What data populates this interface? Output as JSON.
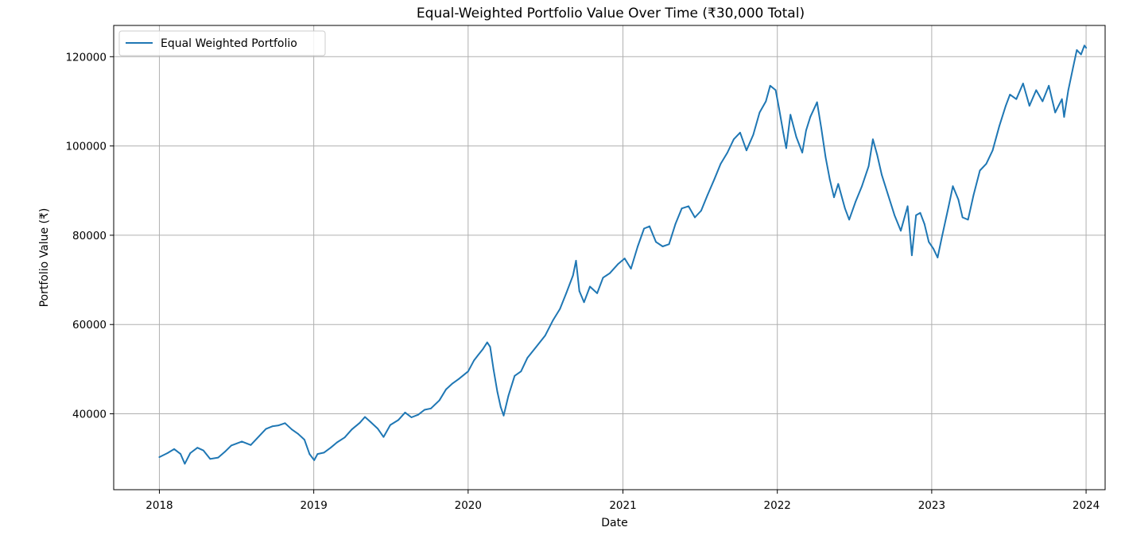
{
  "chart_data": {
    "type": "line",
    "title": "Equal-Weighted Portfolio Value Over Time (₹30,000 Total)",
    "xlabel": "Date",
    "ylabel": "Portfolio Value (₹)",
    "x_range": [
      "2017-09-15",
      "2024-02-15"
    ],
    "ylim": [
      23000,
      127000
    ],
    "x_ticks": [
      "2018",
      "2019",
      "2020",
      "2021",
      "2022",
      "2023",
      "2024"
    ],
    "y_ticks": [
      "40000",
      "60000",
      "80000",
      "100000",
      "120000"
    ],
    "grid": true,
    "legend_position": "top-left",
    "series": [
      {
        "name": "Equal Weighted Portfolio",
        "color": "#1f77b4",
        "points": [
          [
            "2018-01-01",
            30300
          ],
          [
            "2018-01-20",
            31200
          ],
          [
            "2018-02-05",
            32100
          ],
          [
            "2018-02-20",
            31000
          ],
          [
            "2018-03-02",
            28800
          ],
          [
            "2018-03-15",
            31200
          ],
          [
            "2018-04-01",
            32400
          ],
          [
            "2018-04-15",
            31800
          ],
          [
            "2018-05-01",
            29900
          ],
          [
            "2018-05-20",
            30200
          ],
          [
            "2018-06-05",
            31500
          ],
          [
            "2018-06-20",
            32900
          ],
          [
            "2018-07-15",
            33800
          ],
          [
            "2018-08-05",
            33000
          ],
          [
            "2018-08-25",
            35000
          ],
          [
            "2018-09-10",
            36600
          ],
          [
            "2018-09-25",
            37200
          ],
          [
            "2018-10-10",
            37400
          ],
          [
            "2018-10-25",
            37900
          ],
          [
            "2018-11-10",
            36500
          ],
          [
            "2018-11-25",
            35500
          ],
          [
            "2018-12-10",
            34200
          ],
          [
            "2018-12-22",
            31000
          ],
          [
            "2019-01-02",
            29600
          ],
          [
            "2019-01-10",
            31000
          ],
          [
            "2019-01-25",
            31300
          ],
          [
            "2019-02-10",
            32400
          ],
          [
            "2019-02-25",
            33600
          ],
          [
            "2019-03-15",
            34700
          ],
          [
            "2019-04-01",
            36500
          ],
          [
            "2019-04-20",
            38000
          ],
          [
            "2019-05-02",
            39300
          ],
          [
            "2019-05-15",
            38200
          ],
          [
            "2019-06-01",
            36700
          ],
          [
            "2019-06-15",
            34800
          ],
          [
            "2019-07-01",
            37500
          ],
          [
            "2019-07-20",
            38600
          ],
          [
            "2019-08-05",
            40300
          ],
          [
            "2019-08-20",
            39200
          ],
          [
            "2019-09-05",
            39800
          ],
          [
            "2019-09-20",
            40900
          ],
          [
            "2019-10-05",
            41200
          ],
          [
            "2019-10-25",
            43000
          ],
          [
            "2019-11-10",
            45500
          ],
          [
            "2019-11-25",
            46800
          ],
          [
            "2019-12-10",
            47800
          ],
          [
            "2020-01-01",
            49500
          ],
          [
            "2020-01-15",
            52000
          ],
          [
            "2020-01-25",
            53200
          ],
          [
            "2020-02-05",
            54500
          ],
          [
            "2020-02-15",
            56000
          ],
          [
            "2020-02-22",
            55000
          ],
          [
            "2020-03-01",
            50000
          ],
          [
            "2020-03-10",
            45000
          ],
          [
            "2020-03-18",
            41500
          ],
          [
            "2020-03-25",
            39600
          ],
          [
            "2020-04-05",
            44000
          ],
          [
            "2020-04-20",
            48500
          ],
          [
            "2020-05-05",
            49500
          ],
          [
            "2020-05-20",
            52500
          ],
          [
            "2020-06-10",
            55000
          ],
          [
            "2020-07-01",
            57500
          ],
          [
            "2020-07-20",
            61000
          ],
          [
            "2020-08-05",
            63500
          ],
          [
            "2020-08-20",
            67000
          ],
          [
            "2020-09-05",
            71000
          ],
          [
            "2020-09-12",
            74300
          ],
          [
            "2020-09-20",
            67500
          ],
          [
            "2020-10-01",
            65000
          ],
          [
            "2020-10-15",
            68500
          ],
          [
            "2020-11-01",
            67000
          ],
          [
            "2020-11-15",
            70500
          ],
          [
            "2020-12-01",
            71500
          ],
          [
            "2020-12-20",
            73500
          ],
          [
            "2021-01-05",
            74800
          ],
          [
            "2021-01-20",
            72500
          ],
          [
            "2021-02-05",
            77500
          ],
          [
            "2021-02-20",
            81500
          ],
          [
            "2021-03-05",
            82000
          ],
          [
            "2021-03-20",
            78500
          ],
          [
            "2021-04-05",
            77500
          ],
          [
            "2021-04-20",
            78000
          ],
          [
            "2021-05-05",
            82500
          ],
          [
            "2021-05-20",
            86000
          ],
          [
            "2021-06-05",
            86500
          ],
          [
            "2021-06-20",
            84000
          ],
          [
            "2021-07-05",
            85500
          ],
          [
            "2021-07-20",
            89000
          ],
          [
            "2021-08-05",
            92500
          ],
          [
            "2021-08-20",
            96000
          ],
          [
            "2021-09-05",
            98500
          ],
          [
            "2021-09-20",
            101500
          ],
          [
            "2021-10-05",
            103000
          ],
          [
            "2021-10-20",
            99000
          ],
          [
            "2021-11-05",
            102500
          ],
          [
            "2021-11-20",
            107500
          ],
          [
            "2021-12-05",
            110000
          ],
          [
            "2021-12-15",
            113500
          ],
          [
            "2021-12-28",
            112500
          ],
          [
            "2022-01-05",
            108500
          ],
          [
            "2022-01-15",
            103000
          ],
          [
            "2022-01-22",
            99500
          ],
          [
            "2022-02-01",
            107000
          ],
          [
            "2022-02-15",
            102000
          ],
          [
            "2022-03-01",
            98500
          ],
          [
            "2022-03-10",
            103500
          ],
          [
            "2022-03-20",
            106500
          ],
          [
            "2022-04-05",
            109800
          ],
          [
            "2022-04-15",
            104000
          ],
          [
            "2022-04-25",
            97500
          ],
          [
            "2022-05-05",
            92500
          ],
          [
            "2022-05-15",
            88500
          ],
          [
            "2022-05-25",
            91500
          ],
          [
            "2022-06-10",
            86000
          ],
          [
            "2022-06-20",
            83500
          ],
          [
            "2022-07-05",
            87500
          ],
          [
            "2022-07-20",
            91000
          ],
          [
            "2022-08-05",
            95500
          ],
          [
            "2022-08-15",
            101500
          ],
          [
            "2022-08-25",
            98000
          ],
          [
            "2022-09-05",
            93500
          ],
          [
            "2022-09-20",
            89000
          ],
          [
            "2022-10-05",
            84500
          ],
          [
            "2022-10-20",
            81000
          ],
          [
            "2022-11-05",
            86500
          ],
          [
            "2022-11-15",
            75500
          ],
          [
            "2022-11-25",
            84500
          ],
          [
            "2022-12-05",
            85000
          ],
          [
            "2022-12-15",
            82500
          ],
          [
            "2022-12-25",
            78500
          ],
          [
            "2023-01-05",
            77000
          ],
          [
            "2023-01-15",
            75000
          ],
          [
            "2023-01-25",
            79500
          ],
          [
            "2023-02-10",
            86500
          ],
          [
            "2023-02-20",
            91000
          ],
          [
            "2023-03-05",
            88000
          ],
          [
            "2023-03-15",
            84000
          ],
          [
            "2023-03-28",
            83500
          ],
          [
            "2023-04-10",
            89000
          ],
          [
            "2023-04-25",
            94500
          ],
          [
            "2023-05-10",
            96000
          ],
          [
            "2023-05-25",
            99000
          ],
          [
            "2023-06-10",
            104500
          ],
          [
            "2023-06-25",
            109000
          ],
          [
            "2023-07-05",
            111500
          ],
          [
            "2023-07-20",
            110500
          ],
          [
            "2023-08-05",
            114000
          ],
          [
            "2023-08-20",
            109000
          ],
          [
            "2023-09-05",
            112500
          ],
          [
            "2023-09-20",
            110000
          ],
          [
            "2023-10-05",
            113500
          ],
          [
            "2023-10-20",
            107500
          ],
          [
            "2023-11-05",
            110500
          ],
          [
            "2023-11-10",
            106500
          ],
          [
            "2023-11-20",
            112500
          ],
          [
            "2023-12-01",
            117500
          ],
          [
            "2023-12-10",
            121500
          ],
          [
            "2023-12-20",
            120500
          ],
          [
            "2023-12-28",
            122500
          ],
          [
            "2024-01-01",
            122000
          ]
        ]
      }
    ]
  }
}
